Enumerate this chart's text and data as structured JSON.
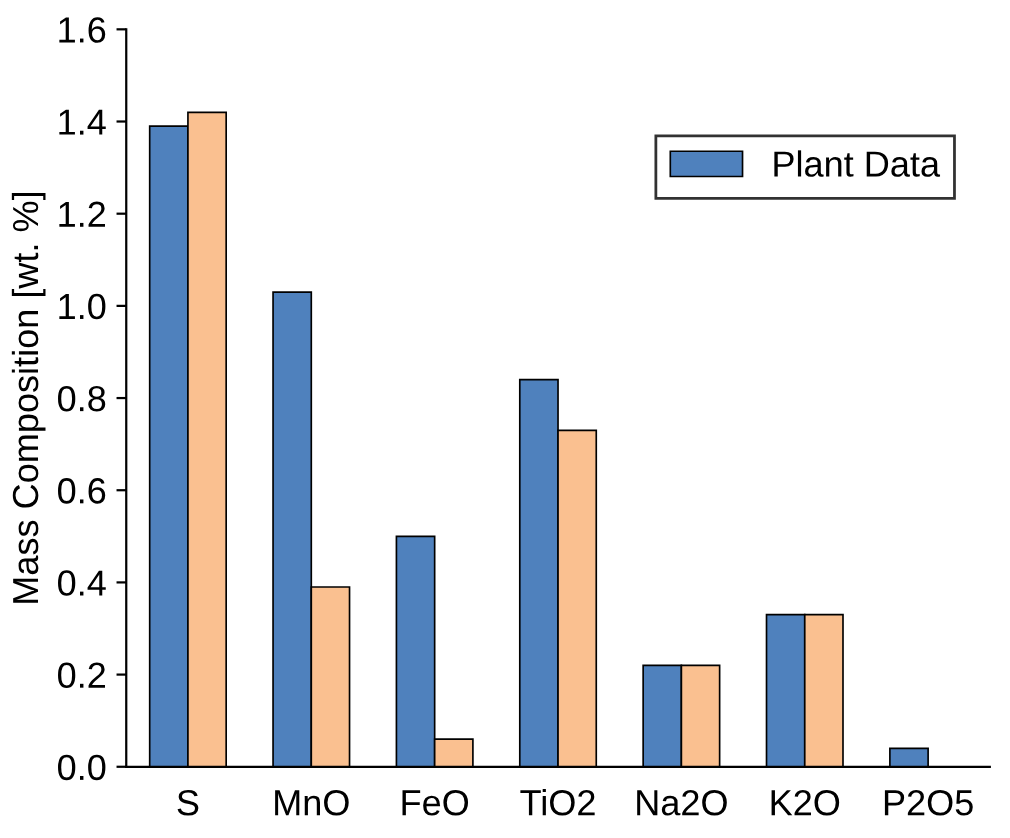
{
  "chart_data": {
    "type": "bar",
    "ylabel": "Mass Composition [wt. %]",
    "categories": [
      "S",
      "MnO",
      "FeO",
      "TiO2",
      "Na2O",
      "K2O",
      "P2O5"
    ],
    "series": [
      {
        "name": "Plant Data",
        "color": "#4f81bd",
        "values": [
          1.39,
          1.03,
          0.5,
          0.84,
          0.22,
          0.33,
          0.04
        ]
      },
      {
        "color": "#fac090",
        "values": [
          1.42,
          0.39,
          0.06,
          0.73,
          0.22,
          0.33,
          null
        ]
      }
    ],
    "ylim": [
      0,
      1.6
    ],
    "yticks": [
      {
        "value": 0,
        "label": "0.0"
      },
      {
        "value": 0.2,
        "label": "0.2"
      },
      {
        "value": 0.4,
        "label": "0.4"
      },
      {
        "value": 0.6,
        "label": "0.6"
      },
      {
        "value": 0.8,
        "label": "0.8"
      },
      {
        "value": 1.0,
        "label": "1.0"
      },
      {
        "value": 1.2,
        "label": "1.2"
      },
      {
        "value": 1.4,
        "label": "1.4"
      },
      {
        "value": 1.6,
        "label": "1.6"
      }
    ],
    "legend": "top right",
    "grid": false
  }
}
